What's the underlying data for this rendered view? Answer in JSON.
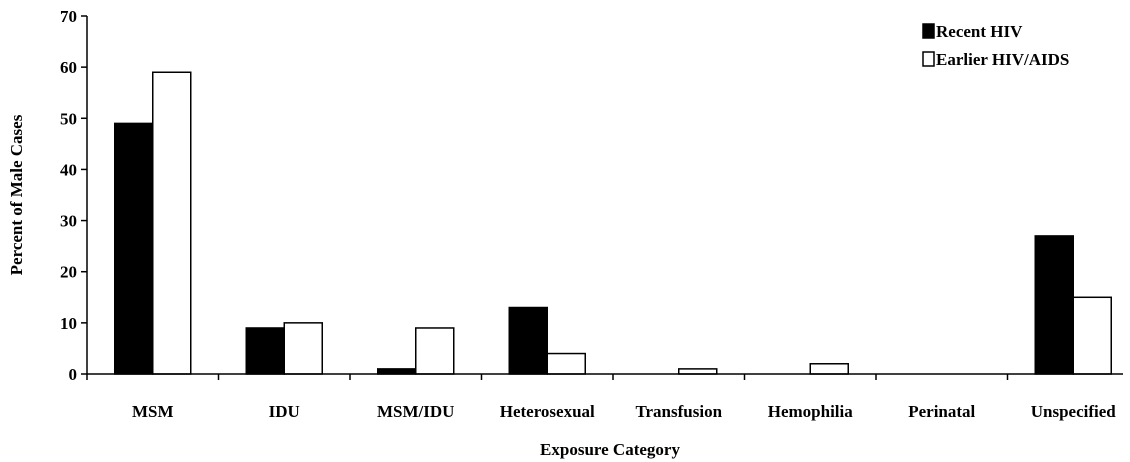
{
  "chart_data": {
    "type": "bar",
    "xlabel": "Exposure Category",
    "ylabel": "Percent of Male Cases",
    "ylim": [
      0,
      70
    ],
    "yticks": [
      0,
      10,
      20,
      30,
      40,
      50,
      60,
      70
    ],
    "grid": false,
    "legend_position": "top-right",
    "categories": [
      "MSM",
      "IDU",
      "MSM/IDU",
      "Heterosexual",
      "Transfusion",
      "Hemophilia",
      "Perinatal",
      "Unspecified"
    ],
    "series": [
      {
        "name": "Recent HIV",
        "color": "#000000",
        "values": [
          49,
          9,
          1,
          13,
          0,
          0,
          0,
          27
        ]
      },
      {
        "name": "Earlier HIV/AIDS",
        "color": "#ffffff",
        "values": [
          59,
          10,
          9,
          4,
          1,
          2,
          0,
          15
        ]
      }
    ]
  }
}
